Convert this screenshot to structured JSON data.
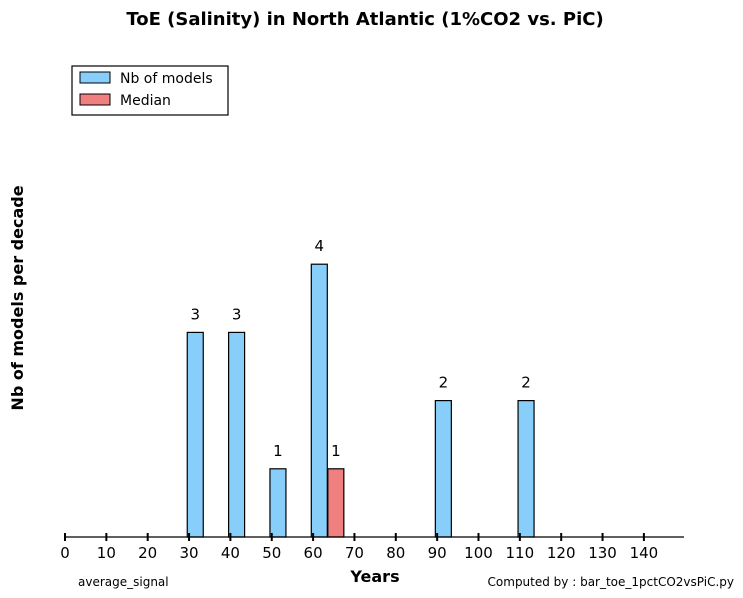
{
  "chart_data": {
    "type": "bar",
    "title": "ToE (Salinity) in North Atlantic (1%CO2 vs. PiC)",
    "xlabel": "Years",
    "ylabel": "Nb of models per decade",
    "xlim": [
      0,
      150
    ],
    "ylim": [
      0,
      5.5
    ],
    "xticks": [
      0,
      10,
      20,
      30,
      40,
      50,
      60,
      70,
      80,
      90,
      100,
      110,
      120,
      130,
      140
    ],
    "grid": false,
    "legend_position": "top-left",
    "series": [
      {
        "name": "Nb of models",
        "color": "#87CEFA",
        "points": [
          {
            "x": 31.5,
            "value": 3
          },
          {
            "x": 41.5,
            "value": 3
          },
          {
            "x": 51.5,
            "value": 1
          },
          {
            "x": 61.5,
            "value": 4
          },
          {
            "x": 91.5,
            "value": 2
          },
          {
            "x": 111.5,
            "value": 2
          }
        ]
      },
      {
        "name": "Median",
        "color": "#F08080",
        "points": [
          {
            "x": 65.5,
            "value": 1
          }
        ]
      }
    ],
    "annotations": {
      "left_footer": "average_signal",
      "right_footer": "Computed by : bar_toe_1pctCO2vsPiC.py"
    }
  }
}
